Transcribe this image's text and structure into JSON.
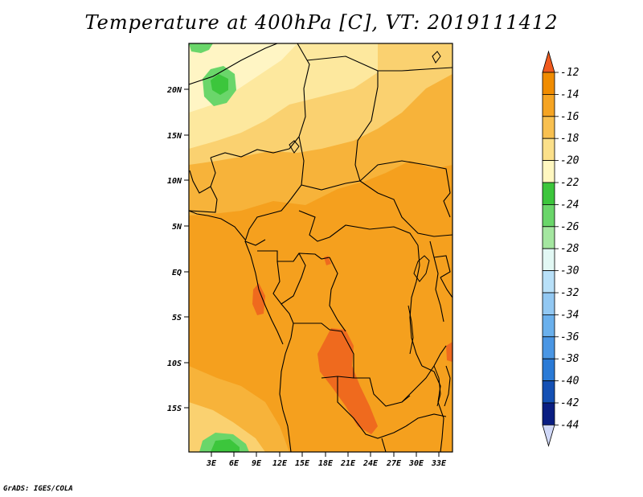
{
  "title": "Temperature at 400hPa [C], VT: 2019111412",
  "credit": "GrADS: IGES/COLA",
  "map": {
    "lat_ticks": [
      "20N",
      "15N",
      "10N",
      "5N",
      "EQ",
      "5S",
      "10S",
      "15S"
    ],
    "lon_ticks": [
      "3E",
      "6E",
      "9E",
      "12E",
      "15E",
      "18E",
      "21E",
      "24E",
      "27E",
      "30E",
      "33E"
    ]
  },
  "colorbar": {
    "labels": [
      "-12",
      "-14",
      "-16",
      "-18",
      "-20",
      "-22",
      "-24",
      "-26",
      "-28",
      "-30",
      "-32",
      "-34",
      "-36",
      "-38",
      "-40",
      "-42",
      "-44"
    ],
    "colors": [
      "#f05a1e",
      "#f08c00",
      "#f5a423",
      "#f8c050",
      "#fbe08a",
      "#fff7c0",
      "#3cc63c",
      "#6ad66a",
      "#a4e6a0",
      "#e2f8f4",
      "#b8e0f8",
      "#92c8f2",
      "#6ab0ec",
      "#4a96e4",
      "#2a7ad6",
      "#1450b4",
      "#0a1e82",
      "#d0d8f8"
    ]
  }
}
